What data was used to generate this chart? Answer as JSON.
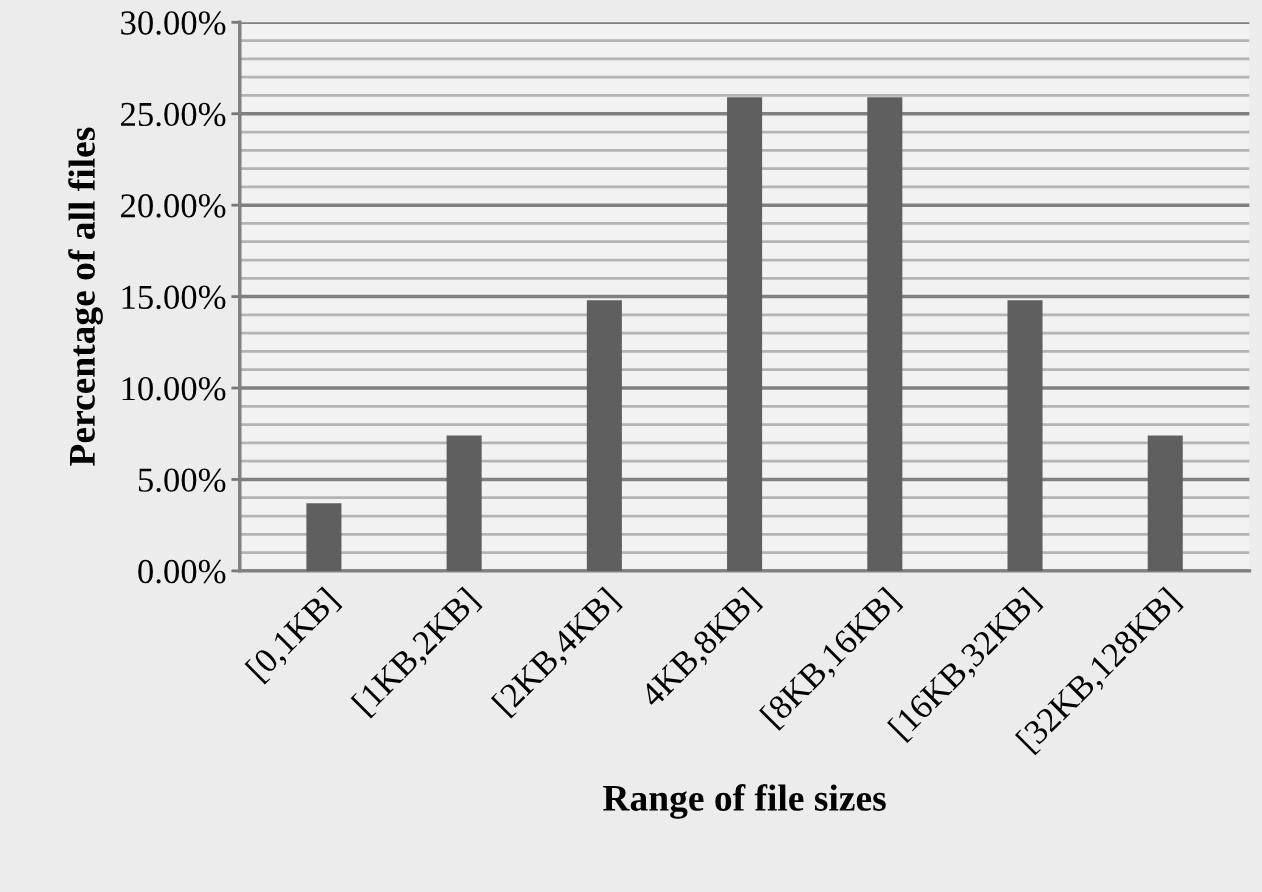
{
  "chart_data": {
    "type": "bar",
    "xlabel": "Range of file sizes",
    "ylabel": "Percentage of all files",
    "categories": [
      "[0,1KB]",
      "[1KB,2KB]",
      "[2KB,4KB]",
      "4KB,8KB]",
      "[8KB,16KB]",
      "[16KB,32KB]",
      "[32KB,128KB]"
    ],
    "values": [
      3.7,
      7.4,
      14.8,
      25.9,
      25.9,
      14.8,
      7.4
    ],
    "color": "#5f5f5f",
    "ylim": [
      0,
      30
    ],
    "yticks": [
      {
        "value": 0,
        "label": "0.00%"
      },
      {
        "value": 5,
        "label": "5.00%"
      },
      {
        "value": 10,
        "label": "10.00%"
      },
      {
        "value": 15,
        "label": "15.00%"
      },
      {
        "value": 20,
        "label": "20.00%"
      },
      {
        "value": 25,
        "label": "25.00%"
      },
      {
        "value": 30,
        "label": "30.00%"
      }
    ],
    "grid": "y"
  }
}
